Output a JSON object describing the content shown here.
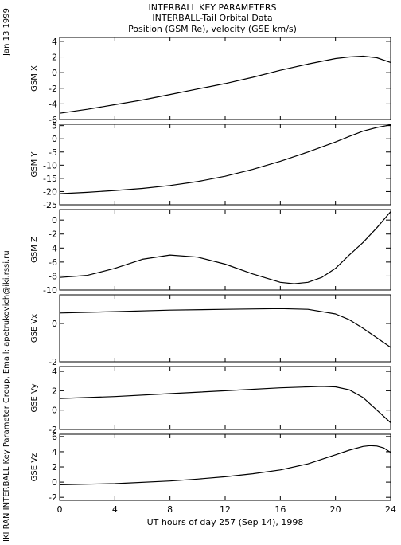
{
  "header": {
    "lines": [
      "INTERBALL KEY PARAMETERS",
      "INTERBALL-Tail Orbital Data",
      "Position (GSM Re), velocity (GSE km/s)"
    ]
  },
  "side_left_top": "Jan 13 1999",
  "side_left_bottom": "IKI RAN INTERBALL Key Parameter Group, Email: apetrukovich@iki.rssi.ru",
  "chart_data": [
    {
      "type": "line",
      "ylabel": "GSM X",
      "ylim": [
        -6,
        4.5
      ],
      "yticks": [
        -6,
        -4,
        -2,
        0,
        2,
        4
      ],
      "xlim": [
        0,
        24
      ],
      "x": [
        0,
        2,
        4,
        6,
        8,
        10,
        12,
        14,
        16,
        18,
        20,
        21,
        22,
        23,
        24
      ],
      "values": [
        -5.2,
        -4.7,
        -4.1,
        -3.5,
        -2.8,
        -2.1,
        -1.4,
        -0.6,
        0.3,
        1.1,
        1.8,
        2.0,
        2.1,
        1.9,
        1.3
      ]
    },
    {
      "type": "line",
      "ylabel": "GSM Y",
      "ylim": [
        -25,
        5.5
      ],
      "yticks": [
        -25,
        -20,
        -15,
        -10,
        -5,
        0,
        5
      ],
      "xlim": [
        0,
        24
      ],
      "x": [
        0,
        2,
        4,
        6,
        8,
        10,
        12,
        14,
        16,
        18,
        20,
        21,
        22,
        23,
        24
      ],
      "values": [
        -20.8,
        -20.3,
        -19.6,
        -18.8,
        -17.7,
        -16.2,
        -14.2,
        -11.6,
        -8.5,
        -5.0,
        -1.2,
        0.9,
        2.9,
        4.3,
        5.3
      ]
    },
    {
      "type": "line",
      "ylabel": "GSM Z",
      "ylim": [
        -10,
        1.5
      ],
      "yticks": [
        -10,
        -8,
        -6,
        -4,
        -2,
        0
      ],
      "xlim": [
        0,
        24
      ],
      "x": [
        0,
        2,
        4,
        6,
        8,
        10,
        12,
        14,
        16,
        17,
        18,
        19,
        20,
        21,
        22,
        23,
        24
      ],
      "values": [
        -8.2,
        -7.9,
        -6.9,
        -5.6,
        -5.0,
        -5.3,
        -6.3,
        -7.7,
        -8.9,
        -9.1,
        -8.9,
        -8.2,
        -6.9,
        -5.0,
        -3.2,
        -1.1,
        1.2
      ]
    },
    {
      "type": "line",
      "ylabel": "GSE Vx",
      "ylim": [
        -2,
        1.5
      ],
      "yticks": [
        -2,
        0
      ],
      "xlim": [
        0,
        24
      ],
      "x": [
        0,
        4,
        8,
        12,
        16,
        18,
        20,
        21,
        22,
        23,
        24
      ],
      "values": [
        0.55,
        0.62,
        0.7,
        0.74,
        0.78,
        0.74,
        0.5,
        0.2,
        -0.25,
        -0.75,
        -1.25
      ]
    },
    {
      "type": "line",
      "ylabel": "GSE Vy",
      "ylim": [
        -2,
        4.5
      ],
      "yticks": [
        -2,
        0,
        2,
        4
      ],
      "xlim": [
        0,
        24
      ],
      "x": [
        0,
        4,
        8,
        12,
        16,
        18,
        19,
        20,
        21,
        22,
        23,
        24
      ],
      "values": [
        1.2,
        1.4,
        1.7,
        2.0,
        2.3,
        2.4,
        2.45,
        2.4,
        2.1,
        1.3,
        0.0,
        -1.3
      ]
    },
    {
      "type": "line",
      "ylabel": "GSE Vz",
      "ylim": [
        -2.4,
        6.3
      ],
      "yticks": [
        -2,
        0,
        2,
        4,
        6
      ],
      "xlim": [
        0,
        24
      ],
      "x": [
        0,
        4,
        8,
        10,
        12,
        14,
        16,
        18,
        20,
        21,
        22,
        22.5,
        23,
        23.5,
        24
      ],
      "values": [
        -0.35,
        -0.2,
        0.15,
        0.4,
        0.7,
        1.1,
        1.6,
        2.4,
        3.6,
        4.2,
        4.7,
        4.8,
        4.75,
        4.5,
        3.9
      ]
    }
  ],
  "x_axis": {
    "ticks": [
      0,
      4,
      8,
      12,
      16,
      20,
      24
    ],
    "xlabel": "UT hours of day 257 (Sep 14), 1998"
  },
  "colors": {
    "line": "#000000",
    "frame": "#000000",
    "background": "#ffffff"
  }
}
